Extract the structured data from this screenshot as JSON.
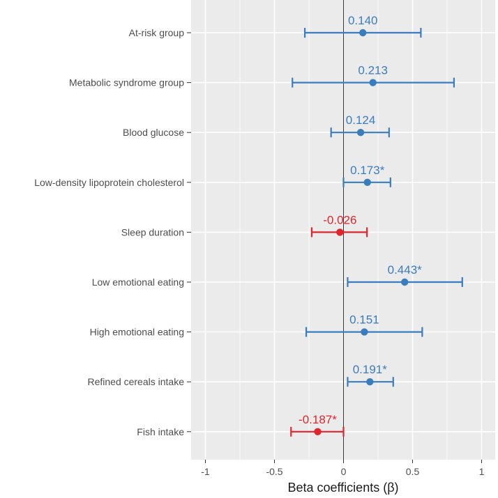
{
  "chart_data": {
    "type": "forest",
    "title": "",
    "xlabel": "Beta coefficients (β)",
    "ylabel": "",
    "xlim": [
      -1.1,
      1.1
    ],
    "x_ticks": [
      -1,
      -0.5,
      0,
      0.5,
      1
    ],
    "x_tick_labels": [
      "-1",
      "-0.5",
      "0",
      "0.5",
      "1"
    ],
    "reference_line": 0,
    "colors": {
      "positive": "#3a7dbe",
      "negative": "#e0262c",
      "panel": "#ebebeb",
      "grid": "#ffffff",
      "ref_line": "#333333"
    },
    "items": [
      {
        "category": "At-risk group",
        "estimate": 0.14,
        "lower": -0.28,
        "upper": 0.56,
        "label": "0.140"
      },
      {
        "category": "Metabolic syndrome group",
        "estimate": 0.213,
        "lower": -0.37,
        "upper": 0.8,
        "label": "0.213"
      },
      {
        "category": "Blood glucose",
        "estimate": 0.124,
        "lower": -0.09,
        "upper": 0.33,
        "label": "0.124"
      },
      {
        "category": "Low-density lipoprotein cholesterol",
        "estimate": 0.173,
        "lower": 0.0,
        "upper": 0.34,
        "label": "0.173*"
      },
      {
        "category": "Sleep duration",
        "estimate": -0.026,
        "lower": -0.23,
        "upper": 0.17,
        "label": "-0.026"
      },
      {
        "category": "Low emotional eating",
        "estimate": 0.443,
        "lower": 0.03,
        "upper": 0.86,
        "label": "0.443*"
      },
      {
        "category": "High emotional eating",
        "estimate": 0.151,
        "lower": -0.27,
        "upper": 0.57,
        "label": "0.151"
      },
      {
        "category": "Refined cereals intake",
        "estimate": 0.191,
        "lower": 0.03,
        "upper": 0.36,
        "label": "0.191*"
      },
      {
        "category": "Fish intake",
        "estimate": -0.187,
        "lower": -0.38,
        "upper": 0.0,
        "label": "-0.187*"
      }
    ]
  }
}
